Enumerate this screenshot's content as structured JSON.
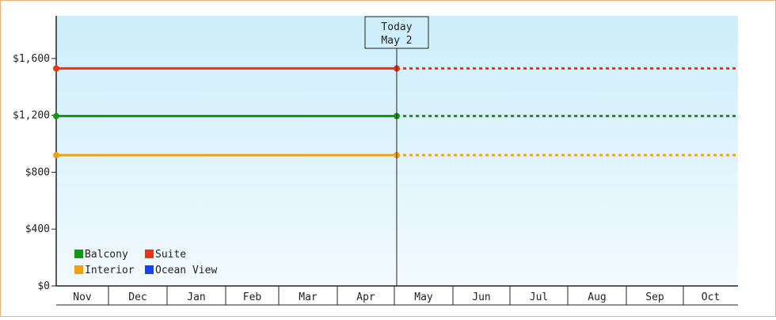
{
  "chart_data": {
    "type": "line",
    "y_ticks": [
      {
        "value": 0,
        "label": "$0"
      },
      {
        "value": 400,
        "label": "$400"
      },
      {
        "value": 800,
        "label": "$800"
      },
      {
        "value": 1200,
        "label": "$1,200"
      },
      {
        "value": 1600,
        "label": "$1,600"
      }
    ],
    "ylim": [
      0,
      1900
    ],
    "months": [
      "Nov",
      "Dec",
      "Jan",
      "Feb",
      "Mar",
      "Apr",
      "May",
      "Jun",
      "Jul",
      "Aug",
      "Sep",
      "Oct"
    ],
    "today": {
      "line1": "Today",
      "line2": "May 2"
    },
    "series": [
      {
        "name": "Suite",
        "color": "#ee3311",
        "value": 1530
      },
      {
        "name": "Balcony",
        "color": "#119911",
        "value": 1195
      },
      {
        "name": "Interior",
        "color": "#f0a010",
        "value": 920
      }
    ],
    "legend": [
      {
        "name": "Balcony",
        "color": "#119911"
      },
      {
        "name": "Suite",
        "color": "#ee3311"
      },
      {
        "name": "Interior",
        "color": "#f0a010"
      },
      {
        "name": "Ocean View",
        "color": "#1144ee"
      }
    ],
    "legend_position": "bottom-left",
    "colors": {
      "background_top": "#cdeefa",
      "background_bottom": "#f2faff",
      "frame_border": "#e8b27a",
      "axis": "#222222"
    }
  }
}
